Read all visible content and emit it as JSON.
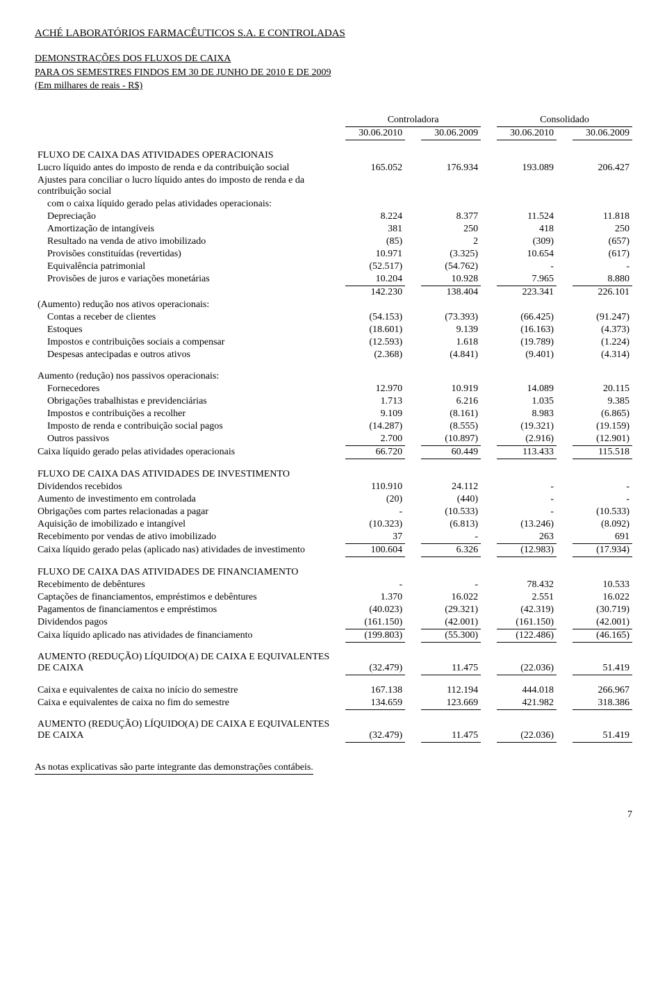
{
  "header": {
    "company": "ACHÉ LABORATÓRIOS FARMACÊUTICOS S.A. E CONTROLADAS",
    "line1": "DEMONSTRAÇÕES DOS FLUXOS DE CAIXA",
    "line2": "PARA OS SEMESTRES FINDOS EM 30 DE JUNHO DE 2010 E DE 2009",
    "line3": "(Em milhares de reais - R$)"
  },
  "colGroups": {
    "g1": "Controladora",
    "g2": "Consolidado"
  },
  "cols": {
    "c1": "30.06.2010",
    "c2": "30.06.2009",
    "c3": "30.06.2010",
    "c4": "30.06.2009"
  },
  "sections": {
    "op": {
      "title": "FLUXO DE CAIXA DAS ATIVIDADES OPERACIONAIS",
      "rows": [
        {
          "l": "Lucro líquido antes do imposto de renda e da contribuição social",
          "v": [
            "165.052",
            "176.934",
            "193.089",
            "206.427"
          ]
        },
        {
          "l": "Ajustes para conciliar o lucro líquido antes do imposto de renda e da contribuição social",
          "v": [
            "",
            "",
            "",
            ""
          ]
        },
        {
          "l": "com o caixa líquido gerado pelas atividades operacionais:",
          "indent": true,
          "v": [
            "",
            "",
            "",
            ""
          ]
        },
        {
          "l": "Depreciação",
          "indent": true,
          "v": [
            "8.224",
            "8.377",
            "11.524",
            "11.818"
          ]
        },
        {
          "l": "Amortização de intangíveis",
          "indent": true,
          "v": [
            "381",
            "250",
            "418",
            "250"
          ]
        },
        {
          "l": "Resultado na venda de ativo imobilizado",
          "indent": true,
          "v": [
            "(85)",
            "2",
            "(309)",
            "(657)"
          ]
        },
        {
          "l": "Provisões constituídas (revertidas)",
          "indent": true,
          "v": [
            "10.971",
            "(3.325)",
            "10.654",
            "(617)"
          ]
        },
        {
          "l": "Equivalência patrimonial",
          "indent": true,
          "v": [
            "(52.517)",
            "(54.762)",
            "-",
            "-"
          ]
        },
        {
          "l": "Provisões de juros e variações monetárias",
          "indent": true,
          "v": [
            "10.204",
            "10.928",
            "7.965",
            "8.880"
          ],
          "ul": true
        },
        {
          "l": "",
          "v": [
            "142.230",
            "138.404",
            "223.341",
            "226.101"
          ]
        },
        {
          "l": "(Aumento) redução nos ativos operacionais:",
          "v": [
            "",
            "",
            "",
            ""
          ]
        },
        {
          "l": "Contas a receber de clientes",
          "indent": true,
          "v": [
            "(54.153)",
            "(73.393)",
            "(66.425)",
            "(91.247)"
          ]
        },
        {
          "l": "Estoques",
          "indent": true,
          "v": [
            "(18.601)",
            "9.139",
            "(16.163)",
            "(4.373)"
          ]
        },
        {
          "l": "Impostos e contribuições sociais a compensar",
          "indent": true,
          "v": [
            "(12.593)",
            "1.618",
            "(19.789)",
            "(1.224)"
          ]
        },
        {
          "l": "Despesas antecipadas e outros ativos",
          "indent": true,
          "v": [
            "(2.368)",
            "(4.841)",
            "(9.401)",
            "(4.314)"
          ]
        }
      ],
      "rows2title": "Aumento (redução) nos passivos operacionais:",
      "rows2": [
        {
          "l": "Fornecedores",
          "indent": true,
          "v": [
            "12.970",
            "10.919",
            "14.089",
            "20.115"
          ]
        },
        {
          "l": "Obrigações trabalhistas e previdenciárias",
          "indent": true,
          "v": [
            "1.713",
            "6.216",
            "1.035",
            "9.385"
          ]
        },
        {
          "l": "Impostos e contribuições a recolher",
          "indent": true,
          "v": [
            "9.109",
            "(8.161)",
            "8.983",
            "(6.865)"
          ]
        },
        {
          "l": "Imposto de renda e contribuição social pagos",
          "indent": true,
          "v": [
            "(14.287)",
            "(8.555)",
            "(19.321)",
            "(19.159)"
          ]
        },
        {
          "l": "Outros passivos",
          "indent": true,
          "v": [
            "2.700",
            "(10.897)",
            "(2.916)",
            "(12.901)"
          ],
          "ul": true
        },
        {
          "l": "Caixa líquido gerado pelas atividades operacionais",
          "v": [
            "66.720",
            "60.449",
            "113.433",
            "115.518"
          ],
          "ul": true
        }
      ]
    },
    "inv": {
      "title": "FLUXO DE CAIXA DAS ATIVIDADES DE INVESTIMENTO",
      "rows": [
        {
          "l": "Dividendos recebidos",
          "v": [
            "110.910",
            "24.112",
            "-",
            "-"
          ]
        },
        {
          "l": "Aumento de investimento em controlada",
          "v": [
            "(20)",
            "(440)",
            "-",
            "-"
          ]
        },
        {
          "l": "Obrigações com partes relacionadas a pagar",
          "v": [
            "-",
            "(10.533)",
            "-",
            "(10.533)"
          ]
        },
        {
          "l": "Aquisição de imobilizado e intangível",
          "v": [
            "(10.323)",
            "(6.813)",
            "(13.246)",
            "(8.092)"
          ]
        },
        {
          "l": "Recebimento por vendas de ativo imobilizado",
          "v": [
            "37",
            "-",
            "263",
            "691"
          ],
          "ul": true
        },
        {
          "l": "Caixa líquido gerado pelas (aplicado nas) atividades de investimento",
          "v": [
            "100.604",
            "6.326",
            "(12.983)",
            "(17.934)"
          ],
          "ul": true
        }
      ]
    },
    "fin": {
      "title": "FLUXO DE CAIXA DAS ATIVIDADES DE FINANCIAMENTO",
      "rows": [
        {
          "l": "Recebimento de debêntures",
          "v": [
            "-",
            "-",
            "78.432",
            "10.533"
          ]
        },
        {
          "l": "Captações de financiamentos, empréstimos e debêntures",
          "v": [
            "1.370",
            "16.022",
            "2.551",
            "16.022"
          ]
        },
        {
          "l": "Pagamentos de financiamentos e empréstimos",
          "v": [
            "(40.023)",
            "(29.321)",
            "(42.319)",
            "(30.719)"
          ]
        },
        {
          "l": "Dividendos pagos",
          "v": [
            "(161.150)",
            "(42.001)",
            "(161.150)",
            "(42.001)"
          ],
          "ul": true
        },
        {
          "l": "Caixa líquido aplicado nas atividades de financiamento",
          "v": [
            "(199.803)",
            "(55.300)",
            "(122.486)",
            "(46.165)"
          ],
          "ul": true
        }
      ]
    },
    "summary": [
      {
        "l": "AUMENTO (REDUÇÃO) LÍQUIDO(A) DE CAIXA E EQUIVALENTES DE CAIXA",
        "v": [
          "(32.479)",
          "11.475",
          "(22.036)",
          "51.419"
        ],
        "ul": true,
        "ultop": true,
        "gap": true
      },
      {
        "l": "Caixa e equivalentes de caixa no início do semestre",
        "v": [
          "167.138",
          "112.194",
          "444.018",
          "266.967"
        ],
        "gap": true
      },
      {
        "l": "Caixa e equivalentes de caixa no fim do semestre",
        "v": [
          "134.659",
          "123.669",
          "421.982",
          "318.386"
        ]
      },
      {
        "l": "AUMENTO (REDUÇÃO) LÍQUIDO(A) DE CAIXA E EQUIVALENTES DE CAIXA",
        "v": [
          "(32.479)",
          "11.475",
          "(22.036)",
          "51.419"
        ],
        "ul": true,
        "ultop": true,
        "gap": true
      }
    ]
  },
  "footer": "As notas explicativas são parte integrante das demonstrações contábeis.",
  "pageNum": "7"
}
